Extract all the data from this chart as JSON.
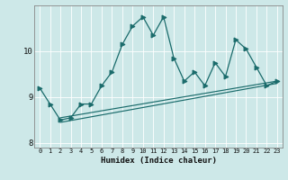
{
  "xlabel": "Humidex (Indice chaleur)",
  "background_color": "#cde8e8",
  "grid_color": "#b8d8d8",
  "line_color": "#1a6b6b",
  "xlim": [
    -0.5,
    23.5
  ],
  "ylim": [
    7.9,
    11.0
  ],
  "yticks": [
    8,
    9,
    10
  ],
  "xticks": [
    0,
    1,
    2,
    3,
    4,
    5,
    6,
    7,
    8,
    9,
    10,
    11,
    12,
    13,
    14,
    15,
    16,
    17,
    18,
    19,
    20,
    21,
    22,
    23
  ],
  "series1_x": [
    0,
    1,
    2,
    3,
    4,
    5,
    6,
    7,
    8,
    9,
    10,
    11,
    12,
    13,
    14,
    15,
    16,
    17,
    18,
    19,
    20,
    21,
    22,
    23
  ],
  "series1_y": [
    9.2,
    8.85,
    8.5,
    8.55,
    8.85,
    8.85,
    9.25,
    9.55,
    10.15,
    10.55,
    10.75,
    10.35,
    10.75,
    9.85,
    9.35,
    9.55,
    9.25,
    9.75,
    9.45,
    10.25,
    10.05,
    9.65,
    9.25,
    9.35
  ],
  "series2_x": [
    2,
    23
  ],
  "series2_y": [
    8.55,
    9.35
  ],
  "series3_x": [
    2,
    23
  ],
  "series3_y": [
    8.45,
    9.3
  ]
}
